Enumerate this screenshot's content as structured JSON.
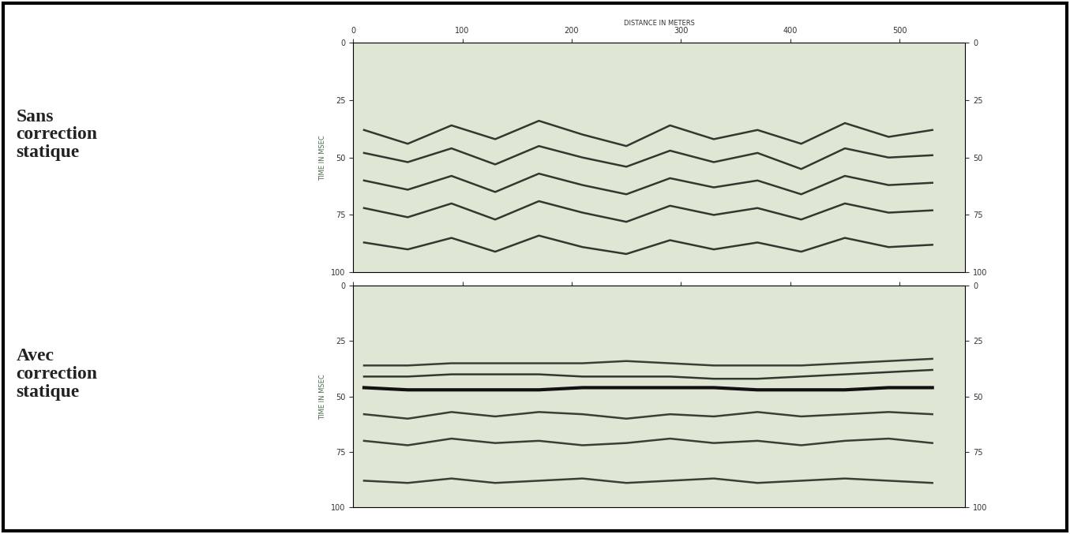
{
  "chart_data": [
    {
      "type": "line",
      "title": "Sans correction statique",
      "xlabel": "DISTANCE IN METERS",
      "ylabel": "TIME IN MSEC",
      "x": [
        10,
        50,
        90,
        130,
        170,
        210,
        250,
        290,
        330,
        370,
        410,
        450,
        490,
        530
      ],
      "series": [
        {
          "color": "#2f3a2f",
          "values": [
            38,
            44,
            36,
            42,
            34,
            40,
            45,
            36,
            42,
            38,
            44,
            35,
            41,
            38
          ]
        },
        {
          "color": "#2f3a2f",
          "values": [
            48,
            52,
            46,
            53,
            45,
            50,
            54,
            47,
            52,
            48,
            55,
            46,
            50,
            49
          ]
        },
        {
          "color": "#2f3a2f",
          "values": [
            60,
            64,
            58,
            65,
            57,
            62,
            66,
            59,
            63,
            60,
            66,
            58,
            62,
            61
          ]
        },
        {
          "color": "#2f3a2f",
          "values": [
            72,
            76,
            70,
            77,
            69,
            74,
            78,
            71,
            75,
            72,
            77,
            70,
            74,
            73
          ]
        },
        {
          "color": "#2f3a2f",
          "values": [
            87,
            90,
            85,
            91,
            84,
            89,
            92,
            86,
            90,
            87,
            91,
            85,
            89,
            88
          ]
        }
      ],
      "xlim": [
        0,
        560
      ],
      "xticks": [
        0,
        100,
        200,
        300,
        400,
        500
      ],
      "ylim": [
        100,
        0
      ],
      "yticks": [
        0,
        25,
        50,
        75,
        100
      ],
      "tick_labels": true
    },
    {
      "type": "line",
      "title": "Avec correction statique",
      "ylabel": "TIME IN MSEC",
      "x": [
        10,
        50,
        90,
        130,
        170,
        210,
        250,
        290,
        330,
        370,
        410,
        450,
        490,
        530
      ],
      "series": [
        {
          "color": "#3a3f36",
          "values": [
            36,
            36,
            35,
            35,
            35,
            35,
            34,
            35,
            36,
            36,
            36,
            35,
            34,
            33
          ]
        },
        {
          "color": "#2f3a2f",
          "values": [
            41,
            41,
            40,
            40,
            40,
            41,
            41,
            41,
            42,
            42,
            41,
            40,
            39,
            38
          ]
        },
        {
          "color": "#111111",
          "values": [
            46,
            47,
            47,
            47,
            47,
            46,
            46,
            46,
            46,
            47,
            47,
            47,
            46,
            46
          ]
        },
        {
          "color": "#3a3f36",
          "values": [
            58,
            60,
            57,
            59,
            57,
            58,
            60,
            58,
            59,
            57,
            59,
            58,
            57,
            58
          ]
        },
        {
          "color": "#3a3f36",
          "values": [
            70,
            72,
            69,
            71,
            70,
            72,
            71,
            69,
            71,
            70,
            72,
            70,
            69,
            71
          ]
        },
        {
          "color": "#3a3f36",
          "values": [
            88,
            89,
            87,
            89,
            88,
            87,
            89,
            88,
            87,
            89,
            88,
            87,
            88,
            89
          ]
        }
      ],
      "xlim": [
        0,
        560
      ],
      "xticks": [
        0,
        100,
        200,
        300,
        400,
        500
      ],
      "ylim": [
        100,
        0
      ],
      "yticks": [
        0,
        25,
        50,
        75,
        100
      ],
      "tick_labels": "y"
    }
  ]
}
